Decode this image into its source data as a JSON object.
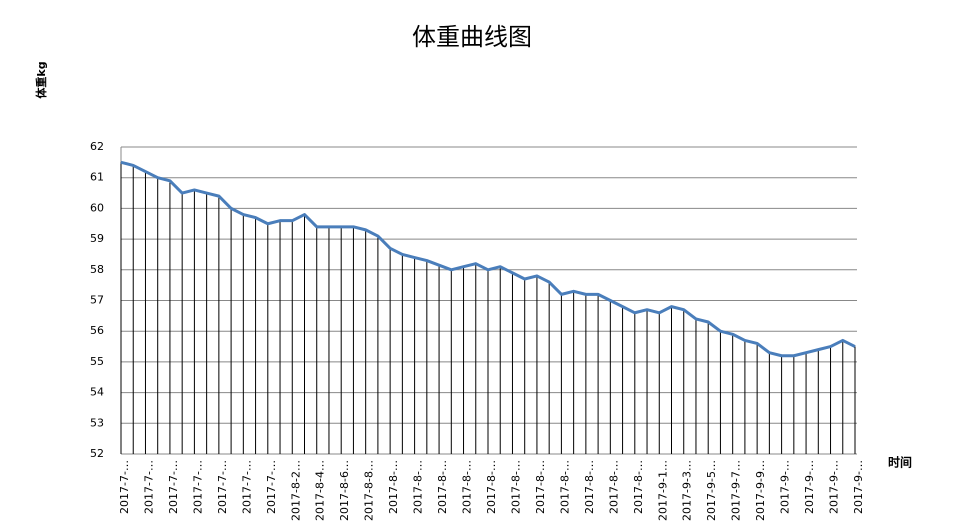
{
  "chart_data": {
    "type": "line",
    "title": "体重曲线图",
    "y_label": "体重kg",
    "x_label": "时间",
    "categories": [
      "2017-7-…",
      null,
      "2017-7-…",
      null,
      "2017-7-…",
      null,
      "2017-7-…",
      null,
      "2017-7-…",
      null,
      "2017-7-…",
      null,
      "2017-7-…",
      null,
      "2017-8-2…",
      null,
      "2017-8-4…",
      null,
      "2017-8-6…",
      null,
      "2017-8-8…",
      null,
      "2017-8-…",
      null,
      "2017-8-…",
      null,
      "2017-8-…",
      null,
      "2017-8-…",
      null,
      "2017-8-…",
      null,
      "2017-8-…",
      null,
      "2017-8-…",
      null,
      "2017-8-…",
      null,
      "2017-8-…",
      null,
      "2017-8-…",
      null,
      "2017-8-…",
      null,
      "2017-9-1…",
      null,
      "2017-9-3…",
      null,
      "2017-9-5…",
      null,
      "2017-9-7…",
      null,
      "2017-9-9…",
      null,
      "2017-9-…",
      null,
      "2017-9-…",
      null,
      "2017-9-…",
      null,
      "2017-9-…"
    ],
    "values": [
      61.5,
      61.4,
      61.2,
      61.0,
      60.9,
      60.5,
      60.6,
      60.5,
      60.4,
      60.0,
      59.8,
      59.7,
      59.5,
      59.6,
      59.6,
      59.8,
      59.4,
      59.4,
      59.4,
      59.4,
      59.3,
      59.1,
      58.7,
      58.5,
      58.4,
      58.3,
      58.15,
      58.0,
      58.1,
      58.2,
      58.0,
      58.1,
      57.9,
      57.7,
      57.8,
      57.6,
      57.2,
      57.3,
      57.2,
      57.2,
      57.0,
      56.8,
      56.6,
      56.7,
      56.6,
      56.8,
      56.7,
      56.4,
      56.3,
      56.0,
      55.9,
      55.7,
      55.6,
      55.3,
      55.2,
      55.2,
      55.3,
      55.4,
      55.5,
      55.7,
      55.5
    ],
    "color": "#4a7ebb",
    "drop_lines": true,
    "ylim": [
      52,
      62
    ],
    "yticks": [
      52,
      53,
      54,
      55,
      56,
      57,
      58,
      59,
      60,
      61,
      62
    ],
    "grid": true
  }
}
